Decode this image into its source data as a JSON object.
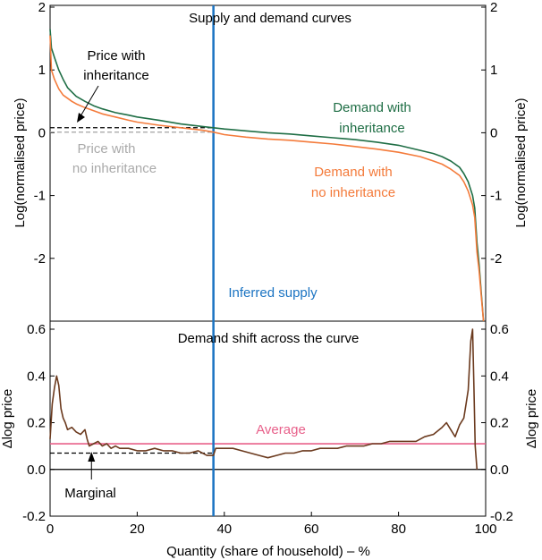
{
  "chart_data": [
    {
      "type": "line",
      "panel": "top",
      "title": "Supply and demand curves",
      "ylabel": "Log(normalised price)",
      "xlabel": "Quantity (share of household) – %",
      "xlim": [
        0,
        100
      ],
      "ylim": [
        -3.0,
        2.0
      ],
      "y_ticks": [
        2,
        1,
        0,
        -1,
        -2
      ],
      "y_tick_labels": [
        "2",
        "1",
        "0",
        "-1",
        "-2"
      ],
      "series": [
        {
          "name": "Demand with inheritance",
          "color": "#1f6e45",
          "x": [
            0,
            0.3,
            1,
            2,
            3,
            4,
            5,
            6,
            8,
            10,
            12,
            15,
            18,
            20,
            25,
            30,
            35,
            37.5,
            40,
            45,
            50,
            55,
            60,
            65,
            70,
            75,
            80,
            85,
            88,
            90,
            92,
            94,
            95,
            96,
            97,
            97.5,
            98,
            98.5,
            99,
            99.5
          ],
          "y": [
            1.65,
            1.35,
            1.2,
            1.0,
            0.85,
            0.72,
            0.65,
            0.58,
            0.5,
            0.43,
            0.38,
            0.32,
            0.28,
            0.25,
            0.2,
            0.14,
            0.1,
            0.08,
            0.06,
            0.03,
            0.0,
            -0.02,
            -0.05,
            -0.08,
            -0.11,
            -0.15,
            -0.2,
            -0.28,
            -0.33,
            -0.38,
            -0.45,
            -0.55,
            -0.65,
            -0.78,
            -1.0,
            -1.2,
            -1.75,
            -2.1,
            -2.55,
            -3.0
          ]
        },
        {
          "name": "Demand with no inheritance",
          "color": "#f47b3b",
          "x": [
            0,
            0.3,
            1,
            2,
            3,
            4,
            5,
            6,
            8,
            10,
            12,
            15,
            18,
            20,
            25,
            30,
            35,
            37.5,
            40,
            45,
            50,
            55,
            60,
            65,
            70,
            75,
            80,
            85,
            88,
            90,
            92,
            94,
            95,
            96,
            97,
            97.5,
            98,
            98.5,
            99,
            99.5
          ],
          "y": [
            1.55,
            1.0,
            0.85,
            0.7,
            0.6,
            0.55,
            0.5,
            0.46,
            0.4,
            0.35,
            0.3,
            0.25,
            0.2,
            0.17,
            0.12,
            0.08,
            0.04,
            0.01,
            -0.03,
            -0.07,
            -0.1,
            -0.12,
            -0.15,
            -0.18,
            -0.22,
            -0.26,
            -0.31,
            -0.38,
            -0.45,
            -0.5,
            -0.58,
            -0.68,
            -0.78,
            -0.93,
            -1.15,
            -1.35,
            -1.9,
            -2.2,
            -2.6,
            -3.0
          ]
        }
      ],
      "reference_lines": [
        {
          "name": "Price with inheritance",
          "y": 0.08,
          "x_end": 37.5,
          "color": "#000000",
          "style": "dashed"
        },
        {
          "name": "Price with no inheritance",
          "y": 0.01,
          "x_end": 37.5,
          "color": "#aaaaaa",
          "style": "dashed"
        },
        {
          "name": "Inferred supply",
          "x": 37.5,
          "color": "#1a73c2"
        }
      ],
      "annotations": {
        "price_with_inheritance": [
          "Price with",
          "inheritance"
        ],
        "price_with_no_inheritance": [
          "Price with",
          "no inheritance"
        ],
        "demand_with_inheritance": [
          "Demand with",
          "inheritance"
        ],
        "demand_with_no_inheritance": [
          "Demand with",
          "no inheritance"
        ],
        "inferred_supply": "Inferred supply"
      }
    },
    {
      "type": "line",
      "panel": "bottom",
      "title": "Demand shift across the curve",
      "ylabel": "Δlog price",
      "xlabel": "Quantity (share of household) – %",
      "xlim": [
        0,
        100
      ],
      "ylim": [
        -0.2,
        0.6
      ],
      "y_ticks": [
        0.6,
        0.4,
        0.2,
        0.0,
        -0.2
      ],
      "y_tick_labels": [
        "0.6",
        "0.4",
        "0.2",
        "0.0",
        "-0.2"
      ],
      "x_ticks": [
        0,
        20,
        40,
        60,
        80,
        100
      ],
      "x_tick_labels": [
        "0",
        "20",
        "40",
        "60",
        "80",
        "100"
      ],
      "series": [
        {
          "name": "Demand shift",
          "color": "#6b3a1e",
          "x": [
            0,
            0.5,
            1,
            1.5,
            2,
            2.5,
            3,
            3.5,
            4,
            5,
            6,
            7,
            8,
            8.5,
            9,
            10,
            11,
            12,
            13,
            14,
            15,
            16,
            18,
            20,
            22,
            24,
            26,
            28,
            30,
            32,
            34,
            36,
            37.5,
            38,
            40,
            42,
            44,
            46,
            48,
            50,
            52,
            54,
            56,
            58,
            60,
            62,
            64,
            66,
            68,
            70,
            72,
            74,
            76,
            78,
            80,
            82,
            84,
            86,
            88,
            90,
            91,
            92,
            93,
            94,
            95,
            95.5,
            96,
            96.3,
            96.6,
            97,
            97.3,
            97.6,
            98
          ],
          "y": [
            0.13,
            0.28,
            0.35,
            0.4,
            0.36,
            0.26,
            0.22,
            0.2,
            0.17,
            0.18,
            0.16,
            0.15,
            0.17,
            0.13,
            0.1,
            0.11,
            0.12,
            0.1,
            0.11,
            0.09,
            0.1,
            0.09,
            0.09,
            0.08,
            0.08,
            0.09,
            0.08,
            0.08,
            0.07,
            0.07,
            0.08,
            0.06,
            0.06,
            0.09,
            0.09,
            0.09,
            0.08,
            0.07,
            0.06,
            0.05,
            0.06,
            0.07,
            0.07,
            0.08,
            0.08,
            0.09,
            0.09,
            0.09,
            0.1,
            0.1,
            0.1,
            0.11,
            0.11,
            0.12,
            0.12,
            0.12,
            0.12,
            0.14,
            0.15,
            0.18,
            0.2,
            0.17,
            0.14,
            0.19,
            0.22,
            0.28,
            0.34,
            0.45,
            0.55,
            0.6,
            0.35,
            0.1,
            0.0
          ]
        }
      ],
      "reference_lines": [
        {
          "name": "Average",
          "y": 0.11,
          "color": "#e8608a"
        },
        {
          "name": "Marginal",
          "y": 0.07,
          "x_end": 37.5,
          "color": "#000000",
          "style": "dashed"
        },
        {
          "name": "Zero line",
          "y": 0.0,
          "color": "#000000"
        },
        {
          "name": "Inferred supply",
          "x": 37.5,
          "color": "#1a73c2"
        }
      ],
      "annotations": {
        "average": "Average",
        "marginal": "Marginal",
        "marginal_arrow_x": 9.5
      }
    }
  ]
}
